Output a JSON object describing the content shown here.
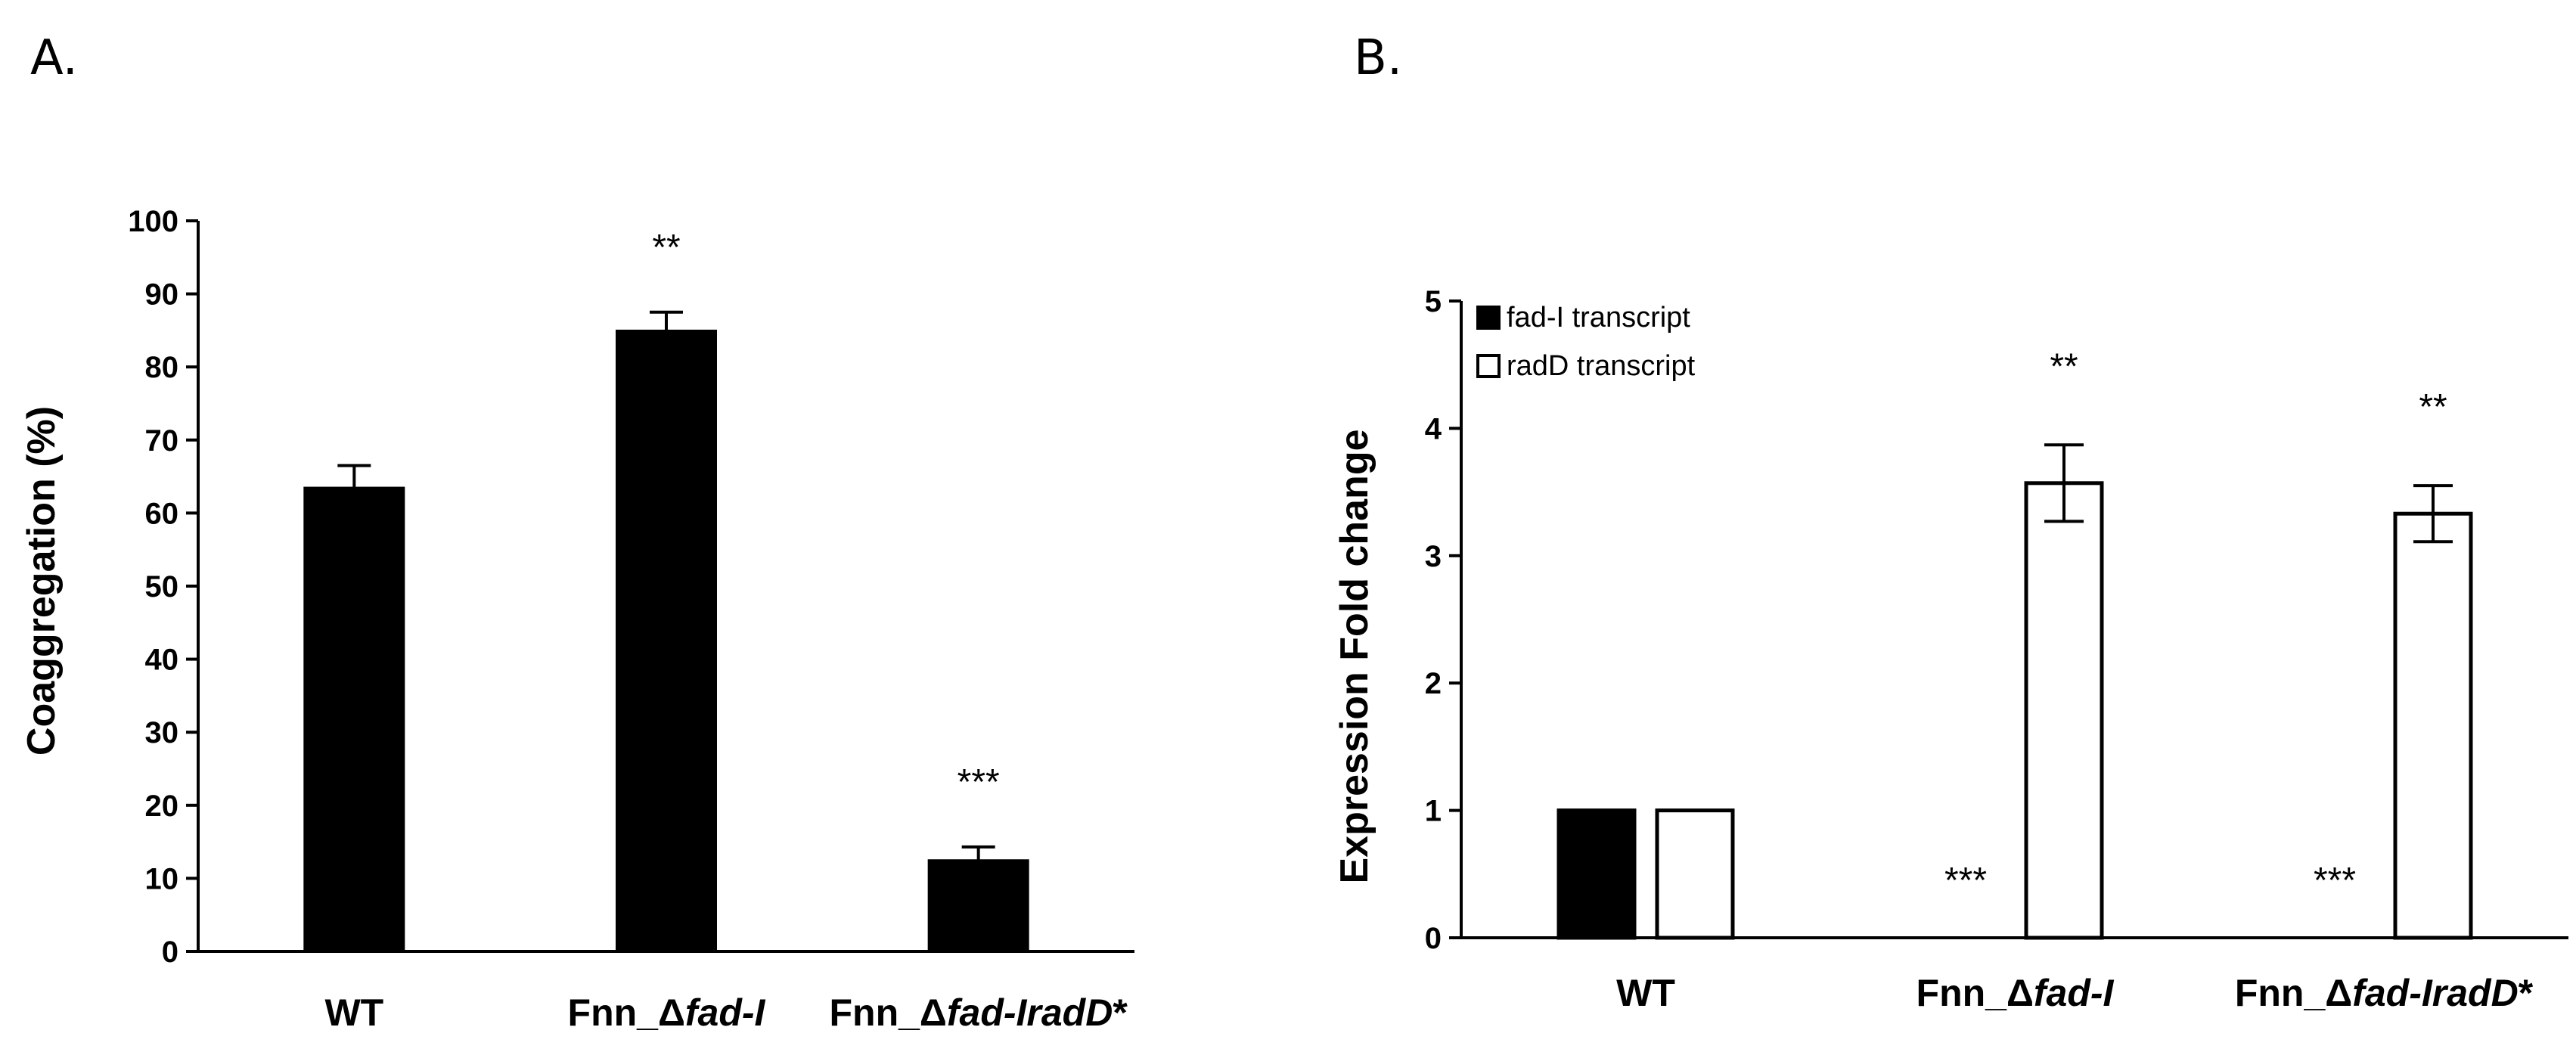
{
  "chart_data": [
    {
      "panel": "A.",
      "type": "bar",
      "ylabel": "Coaggregation (%)",
      "ylim": [
        0,
        100
      ],
      "yticks": [
        0,
        10,
        20,
        30,
        40,
        50,
        60,
        70,
        80,
        90,
        100
      ],
      "categories": [
        {
          "label": "WT",
          "parts": [
            {
              "text": "WT",
              "italic": false
            }
          ]
        },
        {
          "label": "Fnn_Δfad-I",
          "parts": [
            {
              "text": "Fnn_Δ",
              "italic": false
            },
            {
              "text": "fad-I",
              "italic": true
            }
          ]
        },
        {
          "label": "Fnn_Δfad-IradD*",
          "parts": [
            {
              "text": "Fnn_Δ",
              "italic": false
            },
            {
              "text": "fad-IradD",
              "italic": true
            },
            {
              "text": "*",
              "italic": false
            }
          ]
        }
      ],
      "series": [
        {
          "values": [
            63.5,
            85.0,
            12.5
          ],
          "errors": [
            3.0,
            2.5,
            1.8
          ],
          "color": "#000000"
        }
      ],
      "annotations": [
        "",
        "**",
        "***"
      ]
    },
    {
      "panel": "B.",
      "type": "bar",
      "ylabel": "Expression Fold change",
      "ylim": [
        0,
        5
      ],
      "yticks": [
        0,
        1,
        2,
        3,
        4,
        5
      ],
      "categories": [
        {
          "label": "WT",
          "parts": [
            {
              "text": "WT",
              "italic": false
            }
          ]
        },
        {
          "label": "Fnn_Δfad-I",
          "parts": [
            {
              "text": "Fnn_Δ",
              "italic": false
            },
            {
              "text": "fad-I",
              "italic": true
            }
          ]
        },
        {
          "label": "Fnn_Δfad-IradD*",
          "parts": [
            {
              "text": "Fnn_Δ",
              "italic": false
            },
            {
              "text": "fad-IradD",
              "italic": true
            },
            {
              "text": "*",
              "italic": false
            }
          ]
        }
      ],
      "series": [
        {
          "name": "fad-I transcript",
          "values": [
            1.0,
            0.0,
            0.0
          ],
          "errors": [
            0.0,
            0.0,
            0.0
          ],
          "color": "#000000",
          "fill": "solid",
          "annotations": [
            "",
            "***",
            "***"
          ]
        },
        {
          "name": "radD transcript",
          "values": [
            1.0,
            3.57,
            3.33
          ],
          "errors": [
            0.0,
            0.3,
            0.22
          ],
          "color": "#000000",
          "fill": "open",
          "annotations": [
            "",
            "**",
            "**"
          ]
        }
      ],
      "legend": "top-left"
    }
  ]
}
